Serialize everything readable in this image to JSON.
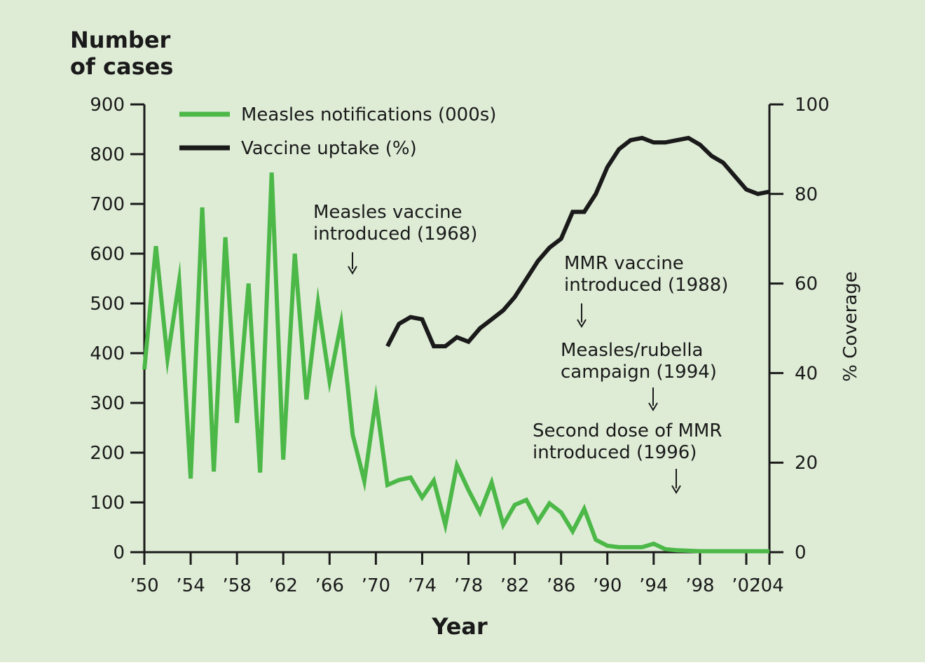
{
  "chart_data": {
    "type": "line",
    "background": "#deecd6",
    "y_left_label": [
      "Number",
      "of cases"
    ],
    "y_right_label": "% Coverage",
    "xlabel": "Year",
    "xlim": [
      1950,
      2004
    ],
    "ylim_left": [
      0,
      900
    ],
    "ylim_right": [
      0,
      100
    ],
    "x_ticks": [
      1950,
      1954,
      1958,
      1962,
      1966,
      1970,
      1974,
      1978,
      1982,
      1986,
      1990,
      1994,
      1998,
      2002,
      2004
    ],
    "x_tick_labels": [
      "’50",
      "’54",
      "’58",
      "’62",
      "’66",
      "’70",
      "’74",
      "’78",
      "’82",
      "’86",
      "’90",
      "’94",
      "’98",
      "’02",
      "’04"
    ],
    "y_left_ticks": [
      0,
      100,
      200,
      300,
      400,
      500,
      600,
      700,
      800,
      900
    ],
    "y_left_tick_labels": [
      "0",
      "100",
      "200",
      "300",
      "400",
      "500",
      "600",
      "700",
      "800",
      "900"
    ],
    "y_right_ticks": [
      0,
      20,
      40,
      60,
      80,
      100
    ],
    "y_right_tick_labels": [
      "0",
      "20",
      "40",
      "60",
      "80",
      "100"
    ],
    "series": [
      {
        "name": "Measles notifications (000s)",
        "axis": "left",
        "color": "#4cb848",
        "x": [
          1950,
          1951,
          1952,
          1953,
          1954,
          1955,
          1956,
          1957,
          1958,
          1959,
          1960,
          1961,
          1962,
          1963,
          1964,
          1965,
          1966,
          1967,
          1968,
          1969,
          1970,
          1971,
          1972,
          1973,
          1974,
          1975,
          1976,
          1977,
          1978,
          1979,
          1980,
          1981,
          1982,
          1983,
          1984,
          1985,
          1986,
          1987,
          1988,
          1989,
          1990,
          1991,
          1992,
          1993,
          1994,
          1995,
          1996,
          1997,
          1998,
          1999,
          2000,
          2001,
          2002,
          2003,
          2004
        ],
        "values": [
          367,
          615,
          389,
          545,
          148,
          693,
          162,
          633,
          260,
          540,
          160,
          763,
          186,
          600,
          307,
          502,
          344,
          460,
          236,
          143,
          307,
          135,
          145,
          150,
          110,
          144,
          55,
          175,
          125,
          80,
          140,
          55,
          95,
          105,
          62,
          98,
          80,
          42,
          87,
          25,
          13,
          10,
          10,
          10,
          17,
          6,
          4,
          3,
          2,
          2,
          2,
          2,
          2,
          2,
          2
        ]
      },
      {
        "name": "Vaccine uptake (%)",
        "axis": "right",
        "color": "#1a1a1a",
        "x": [
          1971,
          1972,
          1973,
          1974,
          1975,
          1976,
          1977,
          1978,
          1979,
          1980,
          1981,
          1982,
          1983,
          1984,
          1985,
          1986,
          1987,
          1988,
          1989,
          1990,
          1991,
          1992,
          1993,
          1994,
          1995,
          1996,
          1997,
          1998,
          1999,
          2000,
          2001,
          2002,
          2003,
          2004
        ],
        "values": [
          46,
          51,
          52.5,
          52,
          46,
          46,
          48,
          47,
          50,
          52,
          54,
          57,
          61,
          65,
          68,
          70,
          76,
          76,
          80,
          86,
          90,
          92,
          92.5,
          91.5,
          91.5,
          92,
          92.5,
          91,
          88.5,
          87,
          84,
          81,
          80,
          80.5
        ]
      }
    ],
    "legend": {
      "placement": "top-left",
      "items": [
        "Measles notifications (000s)",
        "Vaccine uptake (%)"
      ]
    },
    "annotations": [
      {
        "lines": [
          "Measles vaccine",
          "introduced (1968)"
        ],
        "x": 1968
      },
      {
        "lines": [
          "MMR vaccine",
          "introduced (1988)"
        ],
        "x": 1988
      },
      {
        "lines": [
          "Measles/rubella",
          "campaign (1994)"
        ],
        "x": 1994
      },
      {
        "lines": [
          "Second dose of MMR",
          "introduced (1996)"
        ],
        "x": 1996
      }
    ]
  }
}
